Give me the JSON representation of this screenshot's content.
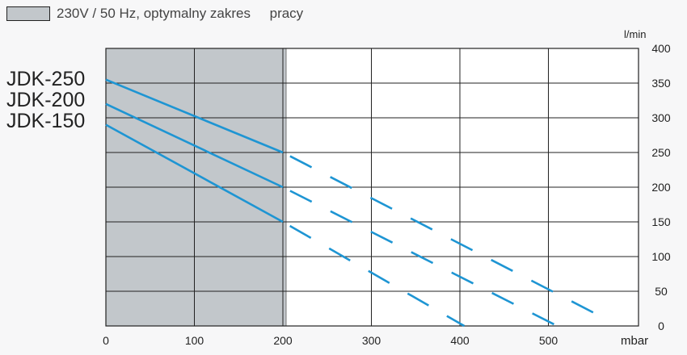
{
  "legend": {
    "text": "230V / 50 Hz, optymalny zakres     pracy",
    "swatch_color": "#c2c7cb"
  },
  "models": [
    "JDK-250",
    "JDK-200",
    "JDK-150"
  ],
  "chart_data": {
    "type": "line",
    "title": "",
    "xlabel": "mbar",
    "ylabel": "l/min",
    "xlim": [
      0,
      620
    ],
    "ylim": [
      0,
      400
    ],
    "x_ticks": [
      0,
      100,
      200,
      300,
      400,
      500
    ],
    "y_ticks": [
      0,
      50,
      100,
      150,
      200,
      250,
      300,
      350,
      400
    ],
    "y_axis_side": "right",
    "grid": true,
    "optimal_range": [
      0,
      200
    ],
    "line_color": "#1e95d3",
    "series": [
      {
        "name": "JDK-250",
        "solid": [
          [
            0,
            355
          ],
          [
            200,
            250
          ]
        ],
        "dashed": [
          [
            200,
            250
          ],
          [
            565,
            10
          ]
        ]
      },
      {
        "name": "JDK-200",
        "solid": [
          [
            0,
            320
          ],
          [
            200,
            200
          ]
        ],
        "dashed": [
          [
            200,
            200
          ],
          [
            510,
            0
          ]
        ]
      },
      {
        "name": "JDK-150",
        "solid": [
          [
            0,
            290
          ],
          [
            200,
            150
          ]
        ],
        "dashed": [
          [
            200,
            150
          ],
          [
            405,
            0
          ]
        ]
      }
    ]
  }
}
